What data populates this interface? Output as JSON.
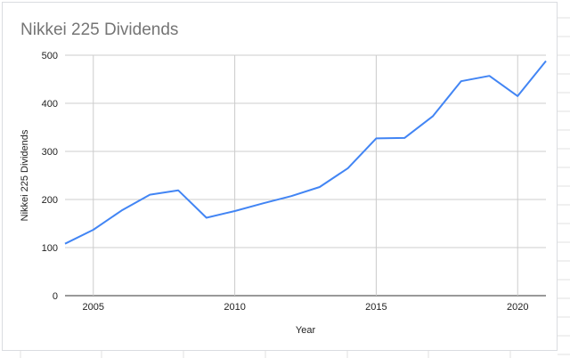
{
  "chart_data": {
    "type": "line",
    "title": "Nikkei 225 Dividends",
    "xlabel": "Year",
    "ylabel": "Nikkei 225 Dividends",
    "xlim": [
      2004,
      2021
    ],
    "ylim": [
      0,
      500
    ],
    "x_ticks": [
      2005,
      2010,
      2015,
      2020
    ],
    "y_ticks": [
      0,
      100,
      200,
      300,
      400,
      500
    ],
    "grid": true,
    "series": [
      {
        "color": "#4285f4",
        "x": [
          2004,
          2005,
          2006,
          2007,
          2008,
          2009,
          2010,
          2011,
          2012,
          2013,
          2014,
          2015,
          2016,
          2017,
          2018,
          2019,
          2020,
          2021
        ],
        "values": [
          108,
          137,
          177,
          210,
          219,
          162,
          176,
          192,
          207,
          226,
          265,
          327,
          328,
          373,
          446,
          457,
          415,
          488
        ]
      }
    ]
  }
}
